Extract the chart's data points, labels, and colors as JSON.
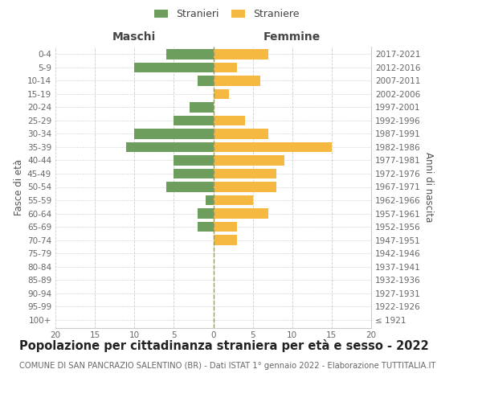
{
  "age_groups": [
    "100+",
    "95-99",
    "90-94",
    "85-89",
    "80-84",
    "75-79",
    "70-74",
    "65-69",
    "60-64",
    "55-59",
    "50-54",
    "45-49",
    "40-44",
    "35-39",
    "30-34",
    "25-29",
    "20-24",
    "15-19",
    "10-14",
    "5-9",
    "0-4"
  ],
  "birth_years": [
    "≤ 1921",
    "1922-1926",
    "1927-1931",
    "1932-1936",
    "1937-1941",
    "1942-1946",
    "1947-1951",
    "1952-1956",
    "1957-1961",
    "1962-1966",
    "1967-1971",
    "1972-1976",
    "1977-1981",
    "1982-1986",
    "1987-1991",
    "1992-1996",
    "1997-2001",
    "2002-2006",
    "2007-2011",
    "2012-2016",
    "2017-2021"
  ],
  "males": [
    0,
    0,
    0,
    0,
    0,
    0,
    0,
    2,
    2,
    1,
    6,
    5,
    5,
    11,
    10,
    5,
    3,
    0,
    2,
    10,
    6
  ],
  "females": [
    0,
    0,
    0,
    0,
    0,
    0,
    3,
    3,
    7,
    5,
    8,
    8,
    9,
    15,
    7,
    4,
    0,
    2,
    6,
    3,
    7
  ],
  "male_color": "#6d9e5e",
  "female_color": "#f5b942",
  "legend_male": "Stranieri",
  "legend_female": "Straniere",
  "title_maschi": "Maschi",
  "title_femmine": "Femmine",
  "ylabel_left": "Fasce di età",
  "ylabel_right": "Anni di nascita",
  "xlim": 20,
  "main_title": "Popolazione per cittadinanza straniera per età e sesso - 2022",
  "subtitle": "COMUNE DI SAN PANCRAZIO SALENTINO (BR) - Dati ISTAT 1° gennaio 2022 - Elaborazione TUTTITALIA.IT",
  "bg_color": "#ffffff",
  "grid_color": "#cccccc",
  "bar_height": 0.75,
  "tick_fontsize": 7.5,
  "axis_label_fontsize": 8.5,
  "legend_fontsize": 9,
  "title_fontsize": 10.5,
  "subtitle_fontsize": 7.2
}
